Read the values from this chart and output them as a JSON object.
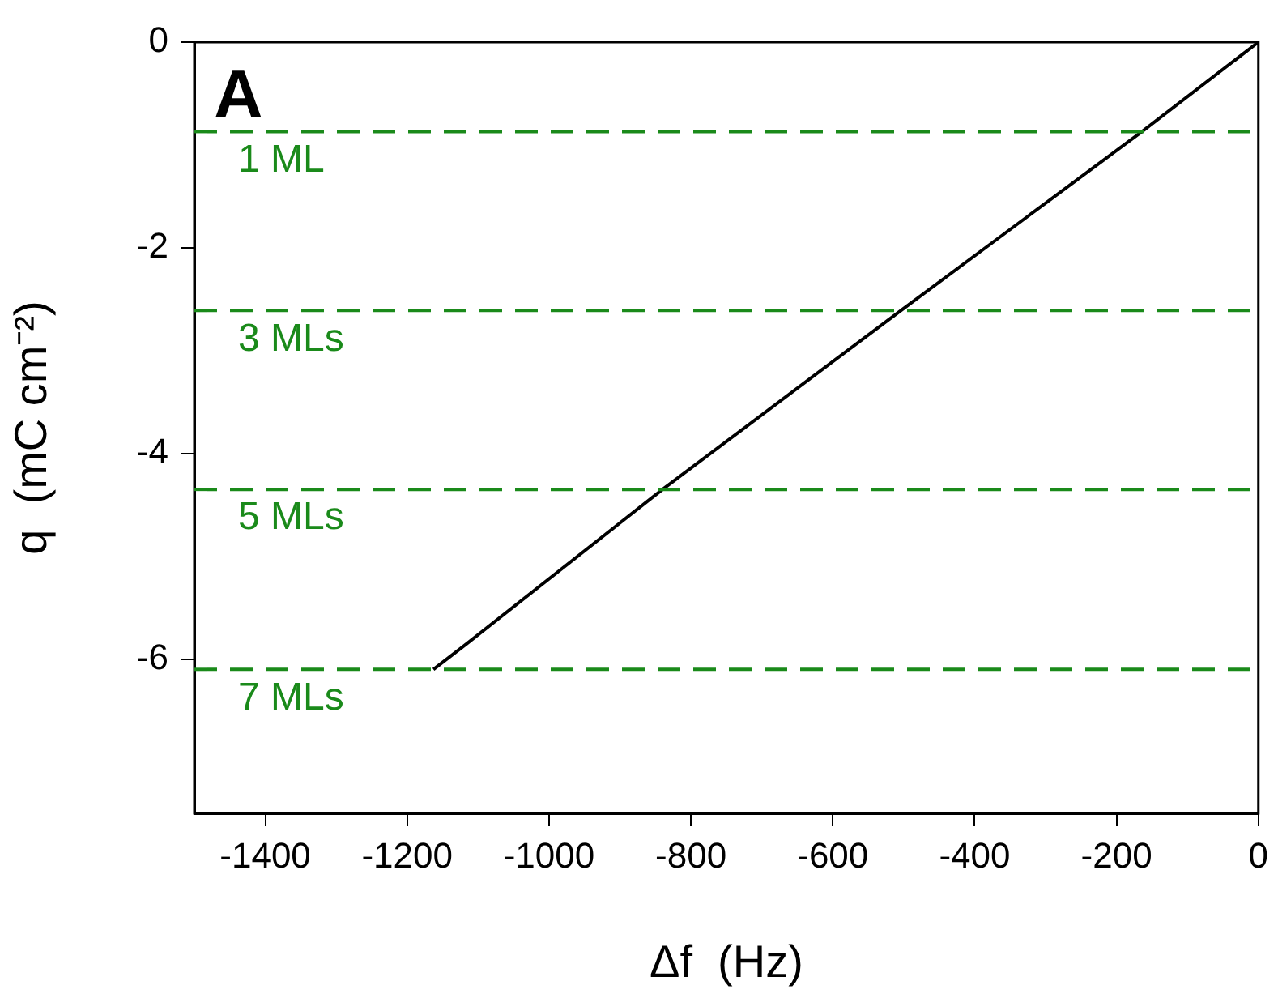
{
  "chart_data": {
    "type": "line",
    "xlabel": "Δf  (Hz)",
    "ylabel": "q  (mC cm⁻²)",
    "annotations": [
      "A"
    ],
    "series": [
      {
        "color": "#000000",
        "x": [
          -1163,
          -1116,
          -840,
          -504,
          -164,
          0
        ],
        "values": [
          -6.1,
          -5.85,
          -4.35,
          -2.61,
          -0.87,
          0
        ]
      }
    ],
    "xlim": [
      -1500,
      0
    ],
    "xticks": [
      -1400,
      -1200,
      -1000,
      -800,
      -600,
      -400,
      -200,
      0
    ],
    "ylim": [
      -7.5,
      0
    ],
    "yticks": [
      -6,
      -4,
      -2,
      0
    ],
    "ref_lines": [
      {
        "axis": "y",
        "value": -0.87,
        "label": "1 ML",
        "color": "#1a8a1a",
        "line_style": "dashed"
      },
      {
        "axis": "y",
        "value": -2.61,
        "label": "3 MLs",
        "color": "#1a8a1a",
        "line_style": "dashed"
      },
      {
        "axis": "y",
        "value": -4.35,
        "label": "5 MLs",
        "color": "#1a8a1a",
        "line_style": "dashed"
      },
      {
        "axis": "y",
        "value": -6.1,
        "label": "7 MLs",
        "color": "#1a8a1a",
        "line_style": "dashed"
      }
    ],
    "grid": false,
    "legend": false,
    "marker": "none",
    "line_style": "solid"
  }
}
